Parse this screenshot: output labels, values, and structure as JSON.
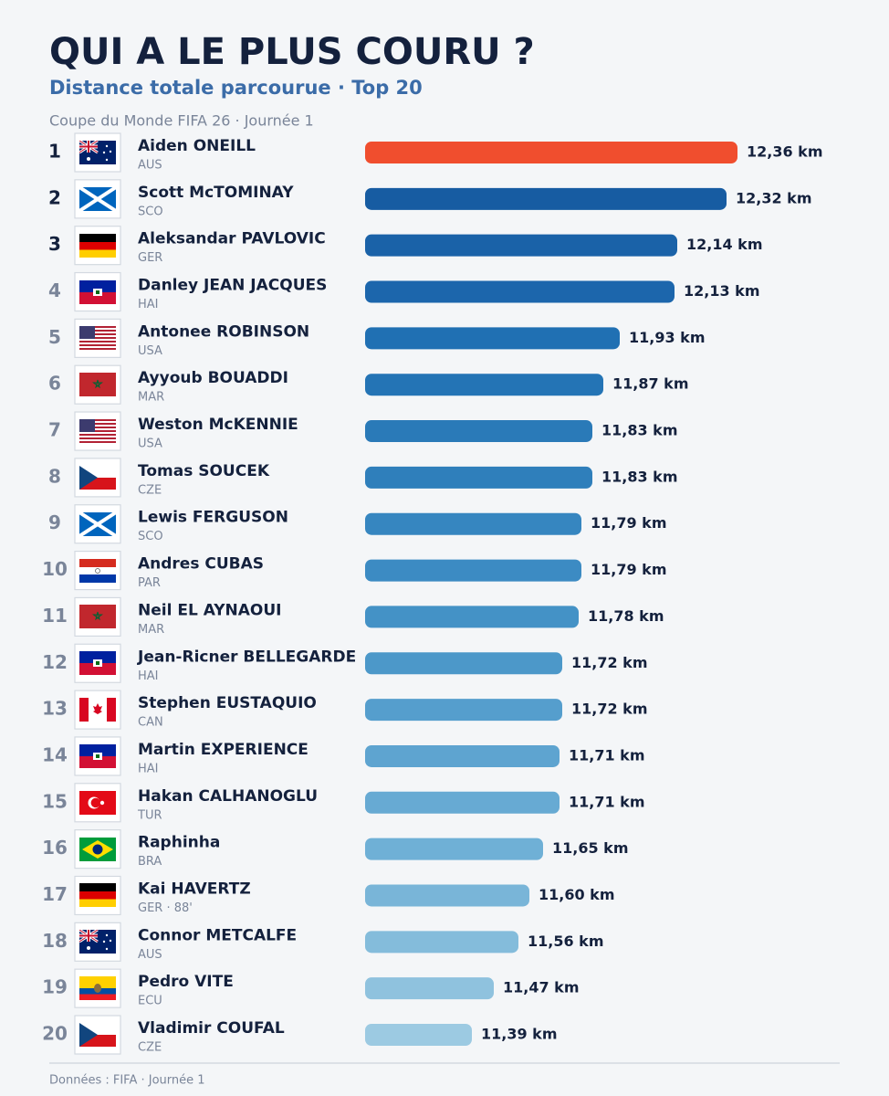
{
  "chart_data": {
    "type": "bar",
    "title": "QUI A LE PLUS COURU ?",
    "subtitle": "Distance totale parcourue · Top 20",
    "context": "Coupe du Monde FIFA 26 · Journée 1",
    "source": "Données : FIFA · Journée 1",
    "ranks": [
      1,
      2,
      3,
      4,
      5,
      6,
      7,
      8,
      9,
      10,
      11,
      12,
      13,
      14,
      15,
      16,
      17,
      18,
      19,
      20
    ],
    "categories": [
      "Aiden ONEILL",
      "Scott McTOMINAY",
      "Aleksandar PAVLOVIC",
      "Danley JEAN JACQUES",
      "Antonee ROBINSON",
      "Ayyoub BOUADDI",
      "Weston McKENNIE",
      "Tomas SOUCEK",
      "Lewis FERGUSON",
      "Andres CUBAS",
      "Neil EL AYNAOUI",
      "Jean-Ricner BELLEGARDE",
      "Stephen EUSTAQUIO",
      "Martin EXPERIENCE",
      "Hakan CALHANOGLU",
      "Raphinha",
      "Kai HAVERTZ",
      "Connor METCALFE",
      "Pedro VITE",
      "Vladimir COUFAL"
    ],
    "teams": [
      "AUS",
      "SCO",
      "GER",
      "HAI",
      "USA",
      "MAR",
      "USA",
      "CZE",
      "SCO",
      "PAR",
      "MAR",
      "HAI",
      "CAN",
      "HAI",
      "TUR",
      "BRA",
      "GER · 88'",
      "AUS",
      "ECU",
      "CZE"
    ],
    "values": [
      12.36,
      12.32,
      12.14,
      12.13,
      11.93,
      11.87,
      11.83,
      11.83,
      11.79,
      11.79,
      11.78,
      11.72,
      11.72,
      11.71,
      11.71,
      11.65,
      11.6,
      11.56,
      11.47,
      11.39
    ],
    "value_labels": [
      "12,36 km",
      "12,32 km",
      "12,14 km",
      "12,13 km",
      "11,93 km",
      "11,87 km",
      "11,83 km",
      "11,83 km",
      "11,79 km",
      "11,79 km",
      "11,78 km",
      "11,72 km",
      "11,72 km",
      "11,71 km",
      "11,71 km",
      "11,65 km",
      "11,60 km",
      "11,56 km",
      "11,47 km",
      "11,39 km"
    ],
    "colors": [
      "#f04e2e",
      "#175ca2",
      "#1a62a8",
      "#1c66ac",
      "#2070b3",
      "#2474b5",
      "#2a7ab8",
      "#2f7fbb",
      "#3686c0",
      "#3c8bc3",
      "#4492c6",
      "#4c98c9",
      "#559ecd",
      "#5ea4d0",
      "#67aad3",
      "#6fb0d6",
      "#79b5d8",
      "#84bcdb",
      "#8fc2de",
      "#9ccae2"
    ],
    "xlim": [
      11,
      12.36
    ]
  }
}
